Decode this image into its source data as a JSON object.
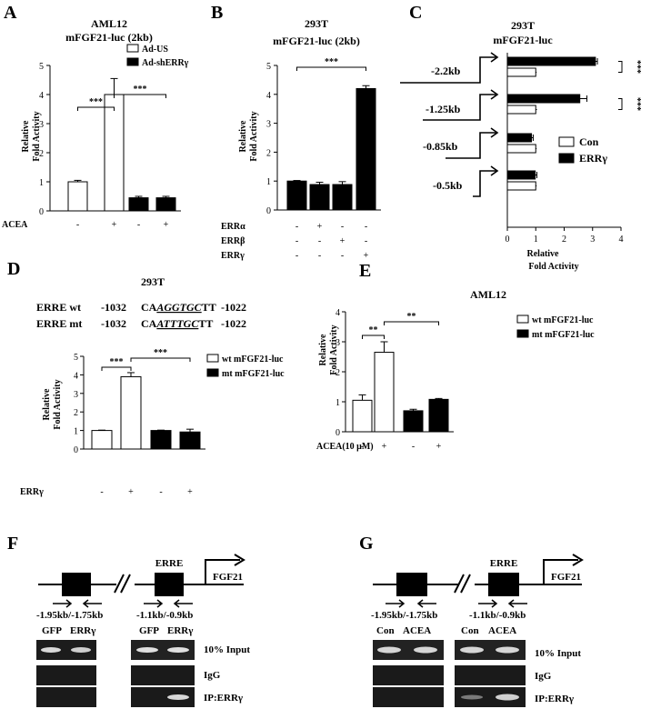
{
  "panels": {
    "A": {
      "letter": "A",
      "title1": "AML12",
      "title2": "mFGF21-luc (2kb)"
    },
    "B": {
      "letter": "B",
      "title1": "293T",
      "title2": "mFGF21-luc (2kb)"
    },
    "C": {
      "letter": "C",
      "title1": "293T",
      "title2": "mFGF21-luc"
    },
    "D": {
      "letter": "D",
      "title1": "293T",
      "seq_wt_label": "ERRE wt",
      "seq_wt_start": "-1032",
      "seq_wt_pre": "CA",
      "seq_wt_core": "AGGTGC",
      "seq_wt_post": "TT",
      "seq_wt_end": "-1022",
      "seq_mt_label": "ERRE mt",
      "seq_mt_start": "-1032",
      "seq_mt_pre": "CA",
      "seq_mt_core": "ATTTGC",
      "seq_mt_post": "TT",
      "seq_mt_end": "-1022"
    },
    "E": {
      "letter": "E",
      "title1": "AML12"
    },
    "F": {
      "letter": "F",
      "erre": "ERRE",
      "gene": "FGF21",
      "primer1": "-1.95kb/-1.75kb",
      "primer2": "-1.1kb/-0.9kb",
      "lanes": [
        "GFP",
        "ERRγ",
        "GFP",
        "ERRγ"
      ],
      "rows": [
        "10% Input",
        "IgG",
        "IP:ERRγ"
      ]
    },
    "G": {
      "letter": "G",
      "erre": "ERRE",
      "gene": "FGF21",
      "primer1": "-1.95kb/-1.75kb",
      "primer2": "-1.1kb/-0.9kb",
      "lanes": [
        "Con",
        "ACEA",
        "Con",
        "ACEA"
      ],
      "rows": [
        "10% Input",
        "IgG",
        "IP:ERRγ"
      ]
    }
  },
  "chart_data": [
    {
      "panel": "A",
      "type": "bar",
      "title": "AML12 mFGF21-luc (2kb)",
      "ylabel": "Relative Fold Activity",
      "ylim": [
        0,
        5
      ],
      "yticks": [
        "0",
        "1",
        "2",
        "3",
        "4",
        "5"
      ],
      "legend": [
        "Ad-US",
        "Ad-shERRγ"
      ],
      "row_labels": [
        "ACEA"
      ],
      "conditions": [
        [
          "-",
          "+",
          "-",
          "+"
        ]
      ],
      "values": [
        1.0,
        4.0,
        0.45,
        0.45
      ],
      "errors": [
        0.05,
        0.55,
        0.05,
        0.05
      ],
      "fills": [
        "white",
        "white",
        "black",
        "black"
      ],
      "significance": [
        {
          "from": 0,
          "to": 1,
          "label": "***"
        },
        {
          "from": 1,
          "to": 3,
          "label": "***"
        }
      ]
    },
    {
      "panel": "B",
      "type": "bar",
      "title": "293T mFGF21-luc (2kb)",
      "ylabel": "Relative Fold Activity",
      "ylim": [
        0,
        5
      ],
      "yticks": [
        "0",
        "1",
        "2",
        "3",
        "4",
        "5"
      ],
      "row_labels": [
        "ERRα",
        "ERRβ",
        "ERRγ"
      ],
      "conditions": [
        [
          "-",
          "+",
          "-",
          "-"
        ],
        [
          "-",
          "-",
          "+",
          "-"
        ],
        [
          "-",
          "-",
          "-",
          "+"
        ]
      ],
      "values": [
        1.0,
        0.88,
        0.88,
        4.2
      ],
      "errors": [
        0.02,
        0.08,
        0.1,
        0.1
      ],
      "fills": [
        "black",
        "black",
        "black",
        "black"
      ],
      "significance": [
        {
          "from": 0,
          "to": 3,
          "label": "***"
        }
      ]
    },
    {
      "panel": "C",
      "type": "bar",
      "orientation": "horizontal",
      "title": "293T mFGF21-luc",
      "xlabel": "Relative Fold Activity",
      "xlim": [
        0,
        4
      ],
      "xticks": [
        "0",
        "1",
        "2",
        "3",
        "4"
      ],
      "constructs": [
        "-2.2kb",
        "-1.25kb",
        "-0.85kb",
        "-0.5kb"
      ],
      "series": [
        {
          "name": "Con",
          "values": [
            1.0,
            1.0,
            1.0,
            1.0
          ],
          "errors": [
            0.03,
            0.04,
            0.03,
            0.03
          ]
        },
        {
          "name": "ERRγ",
          "values": [
            3.1,
            2.55,
            0.85,
            0.98
          ],
          "errors": [
            0.07,
            0.25,
            0.06,
            0.06
          ]
        }
      ],
      "significance": [
        {
          "row": 0,
          "label": "***"
        },
        {
          "row": 1,
          "label": "***"
        }
      ]
    },
    {
      "panel": "D",
      "type": "bar",
      "ylabel": "Relative Fold Activity",
      "ylim": [
        0,
        5
      ],
      "yticks": [
        "0",
        "1",
        "2",
        "3",
        "4",
        "5"
      ],
      "legend": [
        "wt mFGF21-luc",
        "mt mFGF21-luc"
      ],
      "row_labels": [
        "ERRγ"
      ],
      "conditions": [
        [
          "-",
          "+",
          "-",
          "+"
        ]
      ],
      "values": [
        1.0,
        3.9,
        1.0,
        0.92
      ],
      "errors": [
        0.02,
        0.22,
        0.02,
        0.15
      ],
      "fills": [
        "white",
        "white",
        "black",
        "black"
      ],
      "significance": [
        {
          "from": 0,
          "to": 1,
          "label": "***"
        },
        {
          "from": 1,
          "to": 3,
          "label": "***"
        }
      ]
    },
    {
      "panel": "E",
      "type": "bar",
      "ylabel": "Relative Fold Activity",
      "ylim": [
        0,
        4
      ],
      "yticks": [
        "0",
        "1",
        "2",
        "3",
        "4"
      ],
      "legend": [
        "wt mFGF21-luc",
        "mt mFGF21-luc"
      ],
      "row_labels": [
        "ACEA(10 μM)"
      ],
      "conditions": [
        [
          "-",
          "+",
          "-",
          "+"
        ]
      ],
      "values": [
        1.05,
        2.65,
        0.7,
        1.08
      ],
      "errors": [
        0.18,
        0.35,
        0.05,
        0.03
      ],
      "fills": [
        "white",
        "white",
        "black",
        "black"
      ],
      "significance": [
        {
          "from": 0,
          "to": 1,
          "label": "**"
        },
        {
          "from": 1,
          "to": 3,
          "label": "**"
        }
      ]
    }
  ]
}
